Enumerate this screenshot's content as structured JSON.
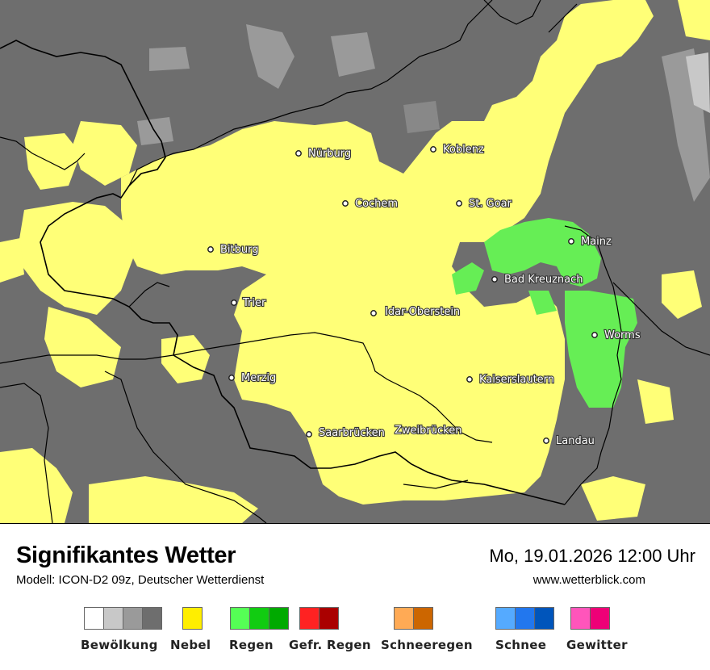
{
  "map": {
    "colors": {
      "background": "#6e6e6e",
      "fog": "#ffff77",
      "rain": "#66ee55",
      "clouds_light": "#9a9a9a",
      "clouds_lighter": "#c8c8c8",
      "borders": "#000000"
    },
    "cities": [
      {
        "id": "nuerburg",
        "name": "Nürburg"
      },
      {
        "id": "koblenz",
        "name": "Koblenz"
      },
      {
        "id": "cochem",
        "name": "Cochem"
      },
      {
        "id": "st-goar",
        "name": "St. Goar"
      },
      {
        "id": "mainz",
        "name": "Mainz"
      },
      {
        "id": "bitburg",
        "name": "Bitburg"
      },
      {
        "id": "bad-kreuznach",
        "name": "Bad Kreuznach"
      },
      {
        "id": "trier",
        "name": "Trier"
      },
      {
        "id": "idar-oberstein",
        "name": "Idar-Oberstein"
      },
      {
        "id": "worms",
        "name": "Worms"
      },
      {
        "id": "merzig",
        "name": "Merzig"
      },
      {
        "id": "kaiserslautern",
        "name": "Kaiserslautern"
      },
      {
        "id": "saarbruecken",
        "name": "Saarbrücken"
      },
      {
        "id": "zweibruecken",
        "name": "Zweibrücken"
      },
      {
        "id": "landau",
        "name": "Landau"
      }
    ]
  },
  "footer": {
    "title": "Signifikantes Wetter",
    "model": "Modell: ICON-D2 09z, Deutscher Wetterdienst",
    "datetime": "Mo, 19.01.2026 12:00 Uhr",
    "website": "www.wetterblick.com"
  },
  "legend": [
    {
      "id": "bewoelkung",
      "label": "Bewölkung",
      "colors": [
        "#ffffff",
        "#c8c8c8",
        "#9a9a9a",
        "#6e6e6e"
      ]
    },
    {
      "id": "nebel",
      "label": "Nebel",
      "colors": [
        "#ffee00"
      ]
    },
    {
      "id": "regen",
      "label": "Regen",
      "colors": [
        "#55ff55",
        "#11cc11",
        "#00aa00"
      ]
    },
    {
      "id": "gefr-regen",
      "label": "Gefr. Regen",
      "colors": [
        "#ff2222",
        "#aa0000"
      ]
    },
    {
      "id": "schneeregen",
      "label": "Schneeregen",
      "colors": [
        "#ffaa55",
        "#cc6600"
      ]
    },
    {
      "id": "schnee",
      "label": "Schnee",
      "colors": [
        "#55aaff",
        "#2277ee",
        "#0055bb"
      ]
    },
    {
      "id": "gewitter",
      "label": "Gewitter",
      "colors": [
        "#ff55bb",
        "#ee0077"
      ]
    }
  ]
}
